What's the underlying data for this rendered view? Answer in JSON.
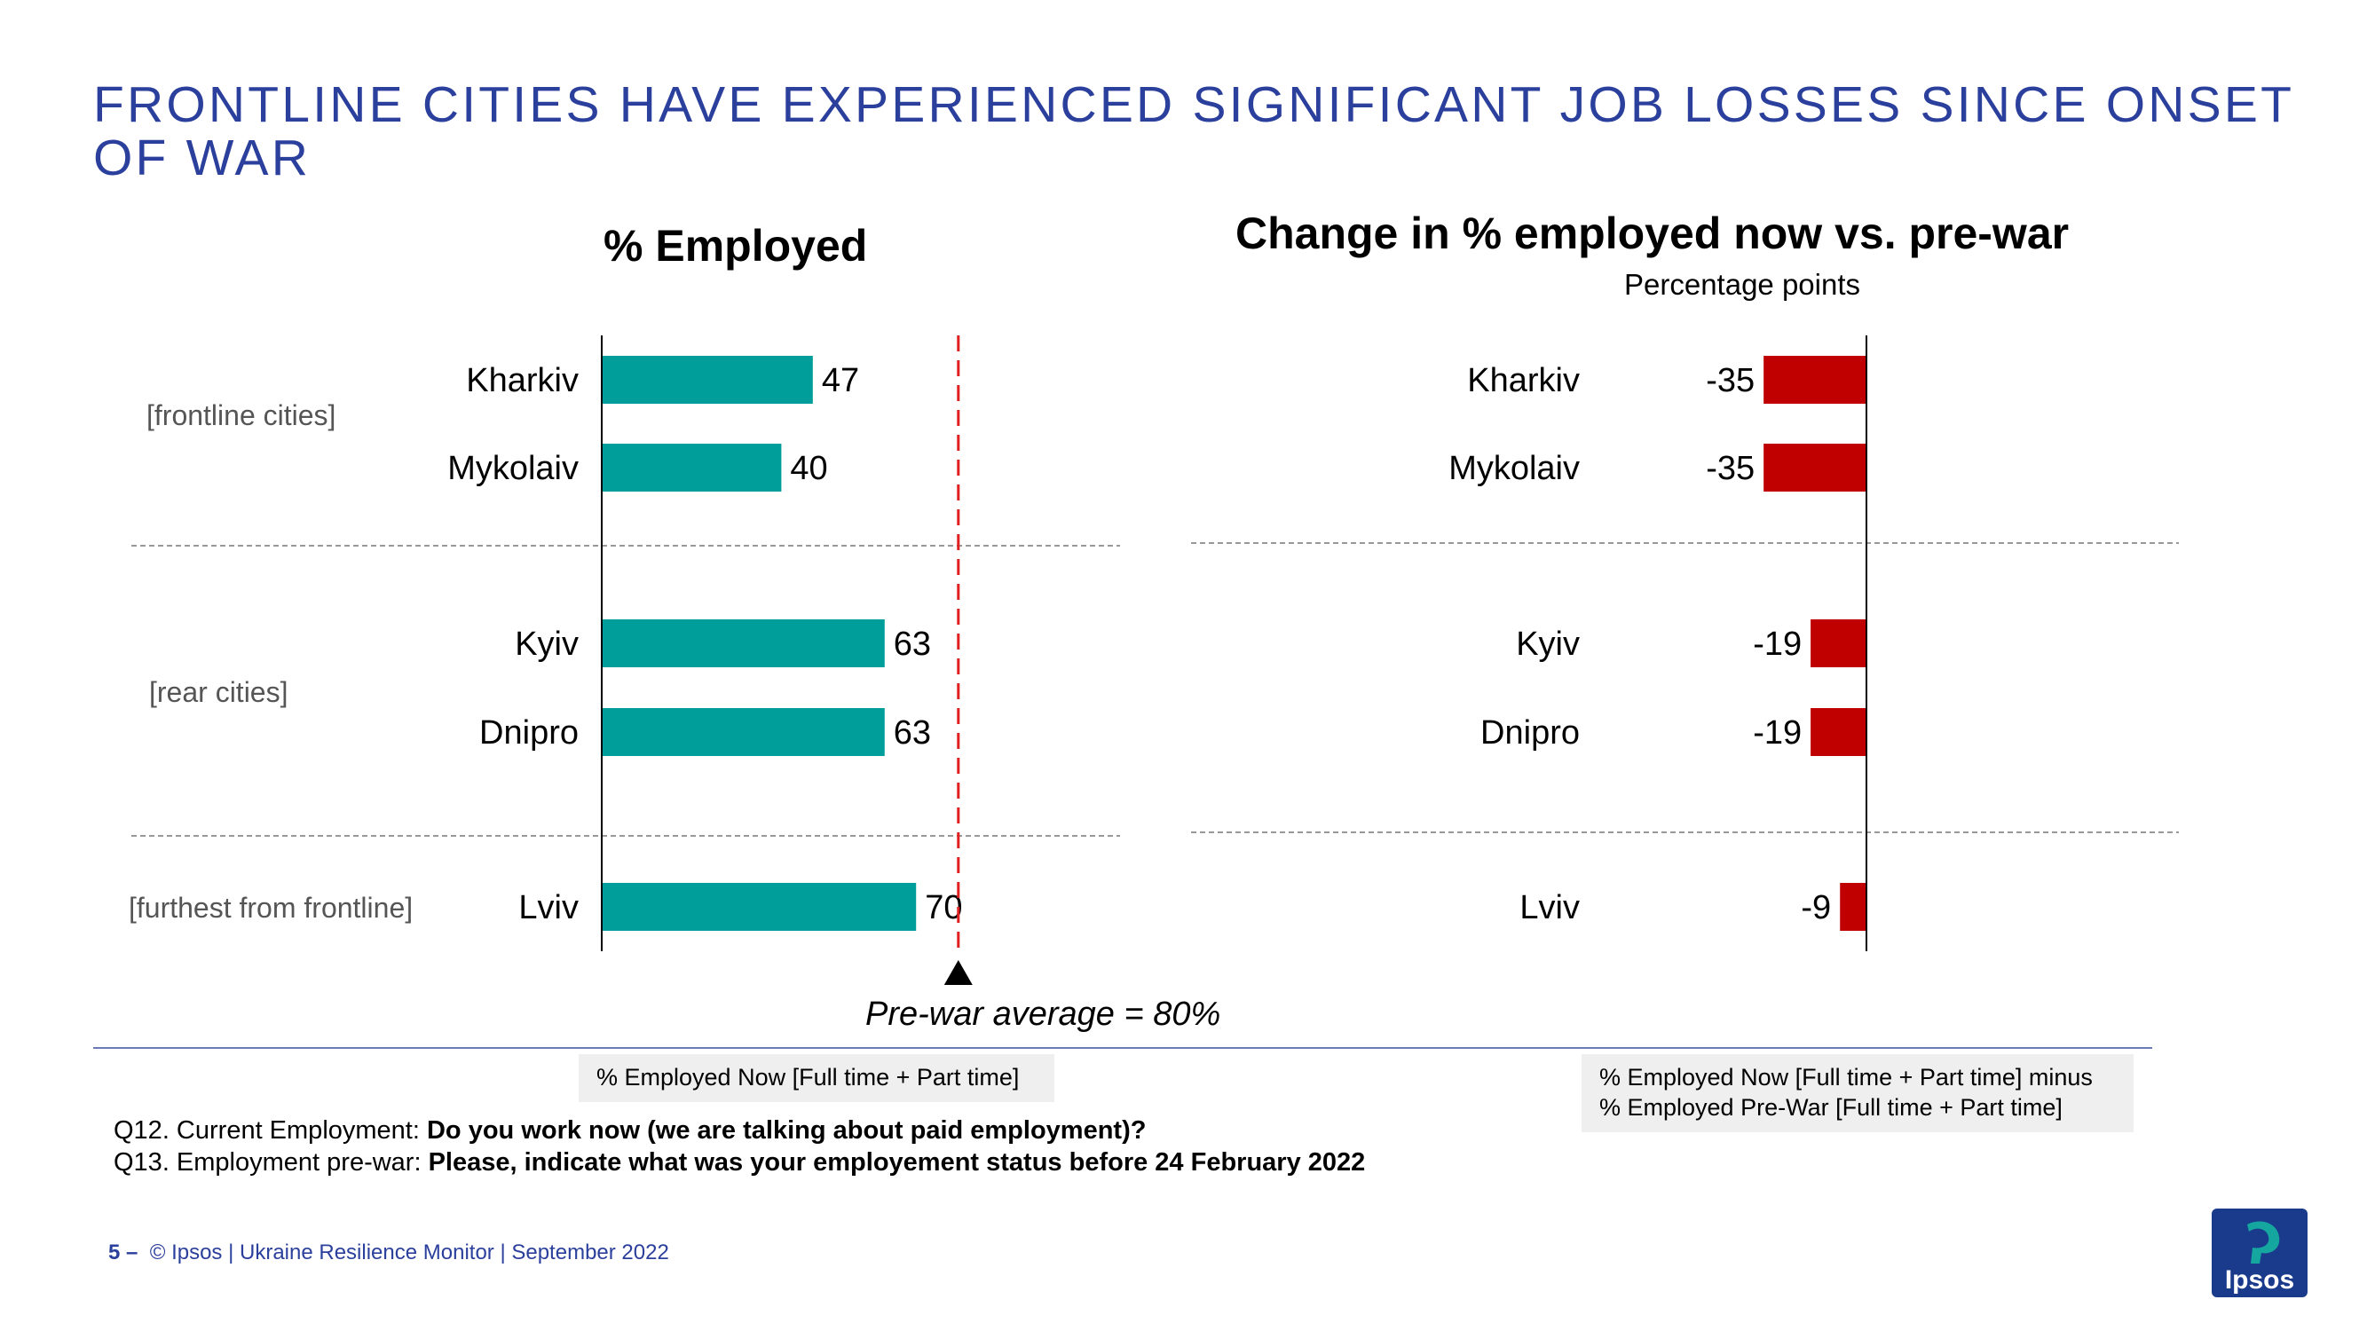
{
  "slide": {
    "title": "FRONTLINE CITIES HAVE EXPERIENCED SIGNIFICANT JOB LOSSES SINCE ONSET OF WAR",
    "groups": [
      "[frontline cities]",
      "[rear cities]",
      "[furthest from frontline]"
    ],
    "prewar_caption": "Pre-war average = 80%",
    "note_left": "% Employed Now [Full time + Part time]",
    "note_right_line1": "% Employed Now [Full time + Part time] minus",
    "note_right_line2": "% Employed Pre-War [Full time + Part time]",
    "q12_prefix": "Q12. Current Employment: ",
    "q12_question": "Do you work now (we are talking about paid employment)?",
    "q13_prefix": "Q13. Employment pre-war: ",
    "q13_question": "Please, indicate what was your employement status before 24 February 2022",
    "footer_page": "5 –",
    "footer_text": "© Ipsos | Ukraine Resilience Monitor | September 2022",
    "logo_text": "Ipsos",
    "colors": {
      "title": "#2b3f9c",
      "employed_bar": "#009e9a",
      "change_bar": "#c00000",
      "prewar_line": "#e02020",
      "logo": "#1a3b8c",
      "logo_accent": "#15a6a0"
    }
  },
  "chart_data": [
    {
      "type": "bar",
      "orientation": "horizontal",
      "title": "% Employed",
      "categories": [
        "Kharkiv",
        "Mykolaiv",
        "Kyiv",
        "Dnipro",
        "Lviv"
      ],
      "values": [
        47,
        40,
        63,
        63,
        70
      ],
      "data_labels": [
        "47",
        "40",
        "63",
        "63",
        "70"
      ],
      "xlim": [
        0,
        100
      ],
      "reference_line": {
        "value": 80,
        "label": "Pre-war average = 80%"
      }
    },
    {
      "type": "bar",
      "orientation": "horizontal",
      "title": "Change in % employed now vs. pre-war",
      "subtitle": "Percentage points",
      "categories": [
        "Kharkiv",
        "Mykolaiv",
        "Kyiv",
        "Dnipro",
        "Lviv"
      ],
      "values": [
        -35,
        -35,
        -19,
        -19,
        -9
      ],
      "data_labels": [
        "-35",
        "-35",
        "-19",
        "-19",
        "-9"
      ],
      "xlim": [
        -100,
        0
      ]
    }
  ]
}
